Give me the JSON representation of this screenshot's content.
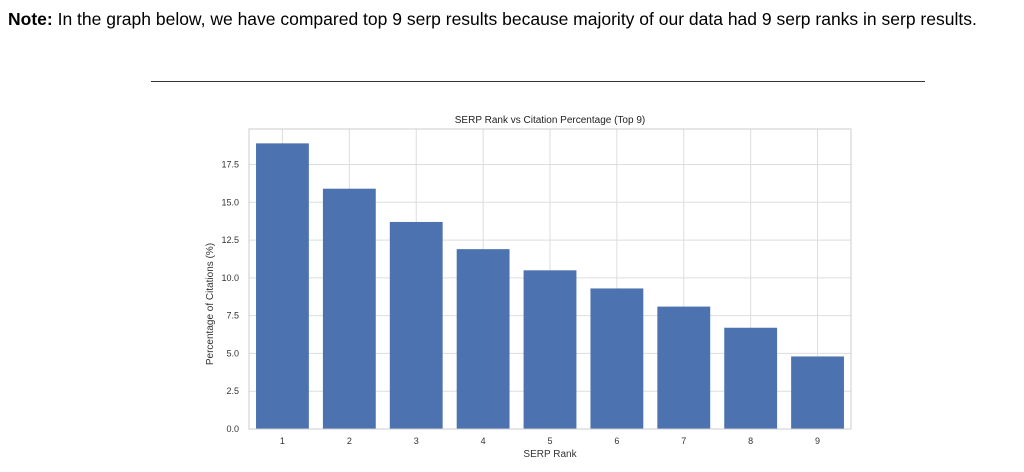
{
  "note": {
    "label": "Note",
    "colon": ":",
    "text": "  In the graph below, we have compared top 9 serp results because majority of our data had 9 serp ranks in serp results."
  },
  "chart_data": {
    "type": "bar",
    "title": "SERP Rank vs Citation Percentage (Top 9)",
    "xlabel": "SERP Rank",
    "ylabel": "Percentage of Citations (%)",
    "categories": [
      "1",
      "2",
      "3",
      "4",
      "5",
      "6",
      "7",
      "8",
      "9"
    ],
    "values": [
      18.9,
      15.9,
      13.7,
      11.9,
      10.5,
      9.3,
      8.1,
      6.7,
      4.8
    ],
    "ylim": [
      0,
      19.85
    ],
    "yticks": [
      0.0,
      2.5,
      5.0,
      7.5,
      10.0,
      12.5,
      15.0,
      17.5
    ],
    "ytick_labels": [
      "0.0",
      "2.5",
      "5.0",
      "7.5",
      "10.0",
      "12.5",
      "15.0",
      "17.5"
    ],
    "grid": true,
    "bar_color": "#4c72b0",
    "grid_color": "#dddddd",
    "frame_color": "#cccccc"
  }
}
